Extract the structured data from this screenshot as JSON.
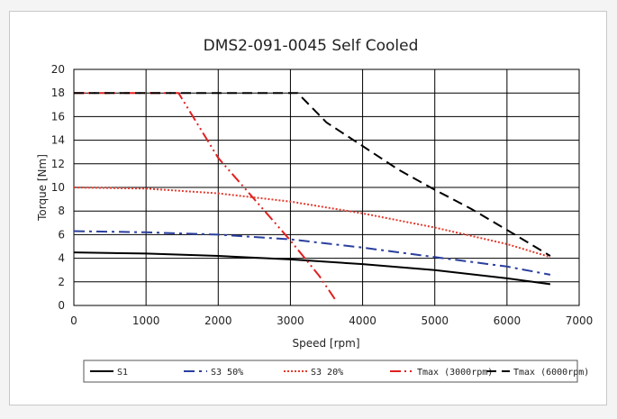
{
  "chart_data": {
    "type": "line",
    "title": "DMS2-091-0045 Self Cooled",
    "xlabel": "Speed [rpm]",
    "ylabel": "Torque [Nm]",
    "xlim": [
      0,
      7000
    ],
    "ylim": [
      0,
      20
    ],
    "xticks": [
      0,
      1000,
      2000,
      3000,
      4000,
      5000,
      6000,
      7000
    ],
    "yticks": [
      0,
      2,
      4,
      6,
      8,
      10,
      12,
      14,
      16,
      18,
      20
    ],
    "grid": true,
    "legend_position": "bottom",
    "series": [
      {
        "name": "S1",
        "color": "#000000",
        "dash": "solid",
        "x": [
          0,
          1000,
          2000,
          3000,
          4000,
          5000,
          6000,
          6600
        ],
        "y": [
          4.5,
          4.4,
          4.2,
          3.9,
          3.5,
          3.0,
          2.3,
          1.8
        ]
      },
      {
        "name": "S3 50%",
        "color": "#2a3f9e",
        "dash": "dashdot",
        "x": [
          0,
          1000,
          2000,
          3000,
          4000,
          5000,
          6000,
          6600
        ],
        "y": [
          6.3,
          6.2,
          6.0,
          5.6,
          4.9,
          4.1,
          3.3,
          2.6
        ]
      },
      {
        "name": "S3 20%",
        "color": "#e23b2e",
        "dash": "dotted",
        "x": [
          0,
          1000,
          2000,
          3000,
          4000,
          5000,
          6000,
          6600
        ],
        "y": [
          10.0,
          9.9,
          9.5,
          8.8,
          7.8,
          6.6,
          5.2,
          4.1
        ]
      },
      {
        "name": "Tmax (3000rpm)",
        "color": "#e02020",
        "dash": "dashdotdot",
        "x": [
          0,
          1450,
          2000,
          2500,
          3000,
          3400,
          3620
        ],
        "y": [
          18.0,
          18.0,
          12.5,
          9.0,
          5.5,
          2.5,
          0.5
        ]
      },
      {
        "name": "Tmax (6000rpm)",
        "color": "#000000",
        "dash": "longdash",
        "x": [
          0,
          3100,
          3500,
          4000,
          4500,
          5000,
          5500,
          6000,
          6600
        ],
        "y": [
          18.0,
          18.0,
          15.5,
          13.5,
          11.5,
          9.8,
          8.2,
          6.4,
          4.2
        ]
      }
    ]
  }
}
